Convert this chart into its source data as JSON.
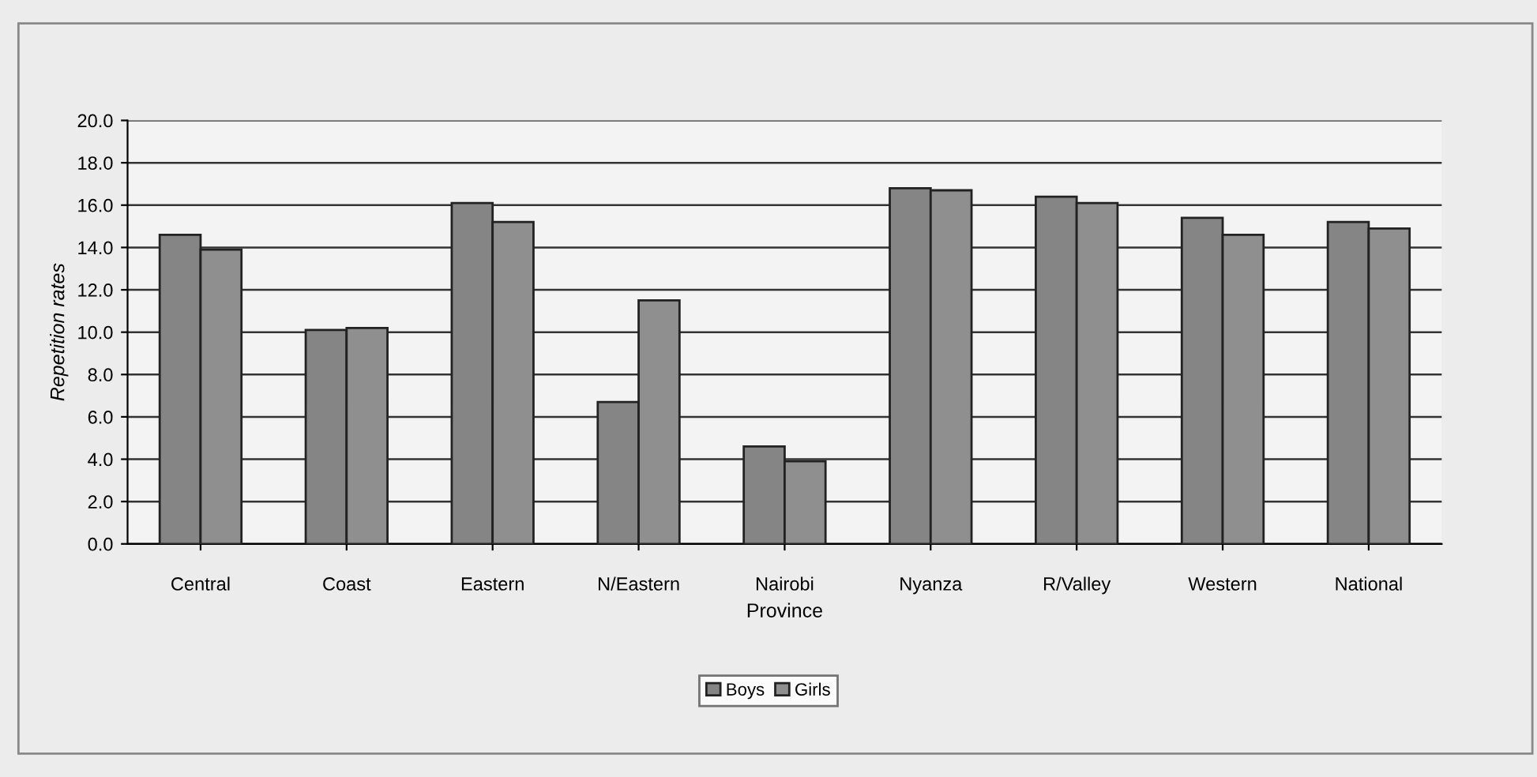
{
  "chart_data": {
    "type": "bar",
    "xlabel": "Province",
    "ylabel": "Repetition rates",
    "categories": [
      "Central",
      "Coast",
      "Eastern",
      "N/Eastern",
      "Nairobi",
      "Nyanza",
      "R/Valley",
      "Western",
      "National"
    ],
    "series": [
      {
        "name": "Boys",
        "color": "#858585",
        "values": [
          14.6,
          10.1,
          16.1,
          6.7,
          4.6,
          16.8,
          16.4,
          15.4,
          15.2
        ]
      },
      {
        "name": "Girls",
        "color": "#8f8f8f",
        "values": [
          13.9,
          10.2,
          15.2,
          11.5,
          3.9,
          16.7,
          16.1,
          14.6,
          14.9
        ]
      }
    ],
    "ylim": [
      0,
      20
    ],
    "yticks": [
      {
        "value": 0,
        "label": "0.0"
      },
      {
        "value": 2,
        "label": "2.0"
      },
      {
        "value": 4,
        "label": "4.0"
      },
      {
        "value": 6,
        "label": "6.0"
      },
      {
        "value": 8,
        "label": "8.0"
      },
      {
        "value": 10,
        "label": "10.0"
      },
      {
        "value": 12,
        "label": "12.0"
      },
      {
        "value": 14,
        "label": "14.0"
      },
      {
        "value": 16,
        "label": "16.0"
      },
      {
        "value": 18,
        "label": "18.0"
      },
      {
        "value": 20,
        "label": "20.0"
      }
    ],
    "grid": "y",
    "legend": "bottom"
  }
}
